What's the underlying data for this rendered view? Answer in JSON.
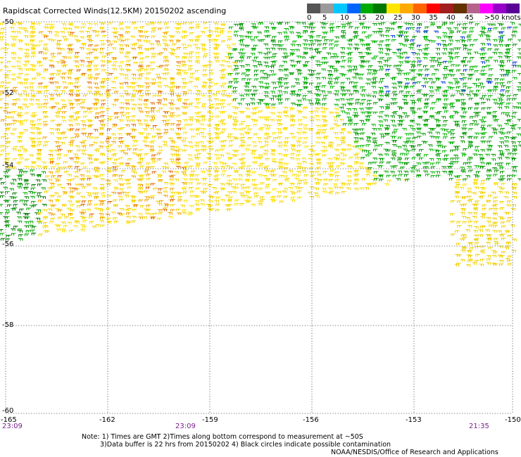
{
  "title": "Rapidscat Corrected Winds(12.5KM) 20150202 ascending",
  "legend": {
    "colors": [
      "#555555",
      "#9a9a9a",
      "#00c8ff",
      "#0064ff",
      "#00aa00",
      "#007800",
      "#ffe600",
      "#ffaa00",
      "#ff6400",
      "#ff0000",
      "#a01e1e",
      "#643200",
      "#b4648c",
      "#ff00ff",
      "#9600c8",
      "#5a0096"
    ],
    "labels": [
      "0",
      "5",
      "10",
      "15",
      "20",
      "25",
      "30",
      "35",
      "40",
      "45",
      ">50 knots"
    ]
  },
  "lat_labels": [
    "-50",
    "-52",
    "-54",
    "-56",
    "-58",
    "-60"
  ],
  "lon_labels": [
    "-165",
    "-162",
    "-159",
    "-156",
    "-153",
    "-150"
  ],
  "time_labels": [
    "23:09",
    "23:09",
    "21:35"
  ],
  "notes": [
    "Note: 1) Times are GMT 2)Times along bottom correspond to measurement at ~50S",
    "3)Data buffer is 22 hrs from 20150202 4) Black circles indicate possible contamination",
    "NOAA/NESDIS/Office of Research and Applications"
  ]
}
